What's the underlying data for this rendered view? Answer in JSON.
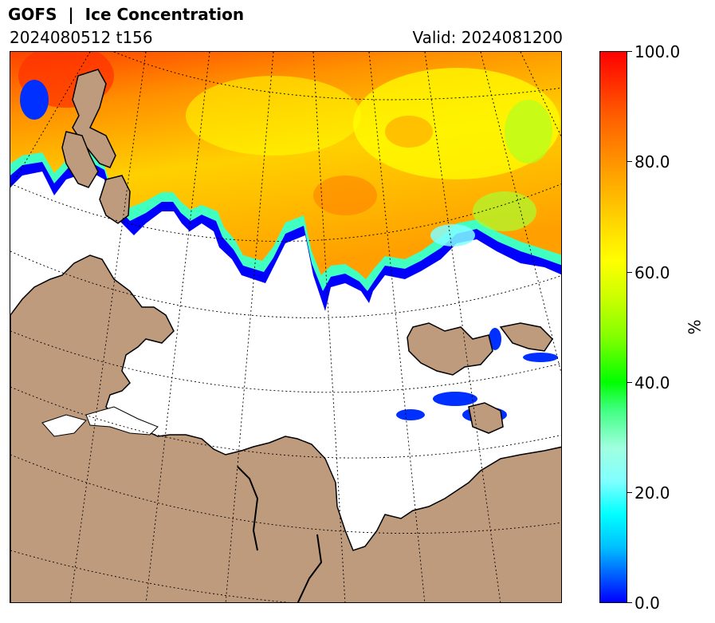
{
  "header": {
    "title": "GOFS  |  Ice Concentration",
    "run": "2024080512 t156",
    "valid": "Valid: 2024081200"
  },
  "colorbar": {
    "ticks": [
      "100.0",
      "80.0",
      "60.0",
      "40.0",
      "20.0",
      "0.0"
    ],
    "unit": "%",
    "range": [
      0,
      100
    ]
  },
  "map": {
    "colors": {
      "land": "#bf9b7d",
      "ocean": "#ffffff",
      "coastline": "#000000",
      "graticule": "#000000"
    }
  }
}
